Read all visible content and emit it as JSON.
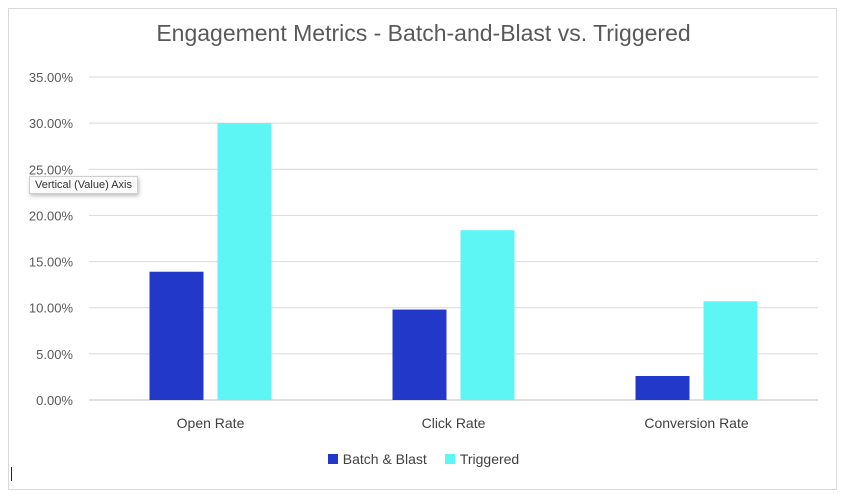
{
  "chart_data": {
    "type": "bar",
    "title": "Engagement Metrics - Batch-and-Blast vs. Triggered",
    "categories": [
      "Open Rate",
      "Click Rate",
      "Conversion Rate"
    ],
    "series": [
      {
        "name": "Batch & Blast",
        "values": [
          0.139,
          0.098,
          0.026
        ],
        "color": "#2238c8"
      },
      {
        "name": "Triggered",
        "values": [
          0.3,
          0.184,
          0.107
        ],
        "color": "#5ef5f5"
      }
    ],
    "ylim": [
      0,
      0.35
    ],
    "yticks": [
      0.0,
      0.05,
      0.1,
      0.15,
      0.2,
      0.25,
      0.3,
      0.35
    ],
    "ytick_labels": [
      "0.00%",
      "5.00%",
      "10.00%",
      "15.00%",
      "20.00%",
      "25.00%",
      "30.00%",
      "35.00%"
    ],
    "grid": true,
    "legend_position": "bottom"
  },
  "tooltip": {
    "text": "Vertical (Value) Axis"
  }
}
